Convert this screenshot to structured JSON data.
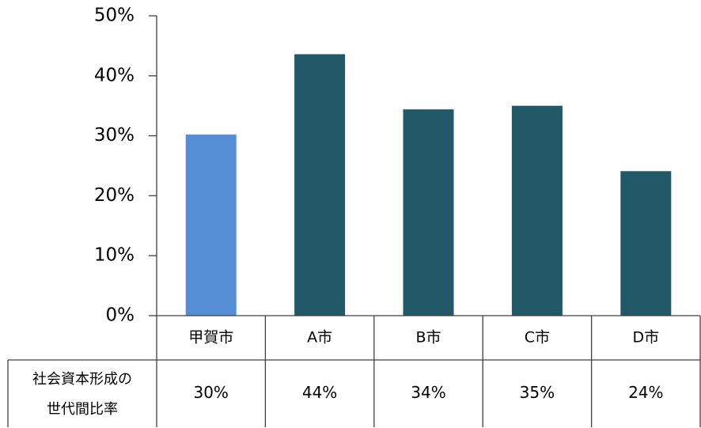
{
  "chart_data": {
    "type": "bar",
    "categories": [
      "甲賀市",
      "A市",
      "B市",
      "C市",
      "D市"
    ],
    "values": [
      30.2,
      43.6,
      34.4,
      35.0,
      24.1
    ],
    "value_labels": [
      "30%",
      "44%",
      "34%",
      "35%",
      "24%"
    ],
    "colors": [
      "#558ed5",
      "#215968",
      "#215968",
      "#215968",
      "#215968"
    ],
    "ylim": [
      0,
      50
    ],
    "yticks": [
      {
        "value": 0,
        "label": "0%"
      },
      {
        "value": 10,
        "label": "10%"
      },
      {
        "value": 20,
        "label": "20%"
      },
      {
        "value": 30,
        "label": "30%"
      },
      {
        "value": 40,
        "label": "40%"
      },
      {
        "value": 50,
        "label": "50%"
      }
    ],
    "table_row_label": [
      "社会資本形成の",
      "世代間比率"
    ]
  }
}
